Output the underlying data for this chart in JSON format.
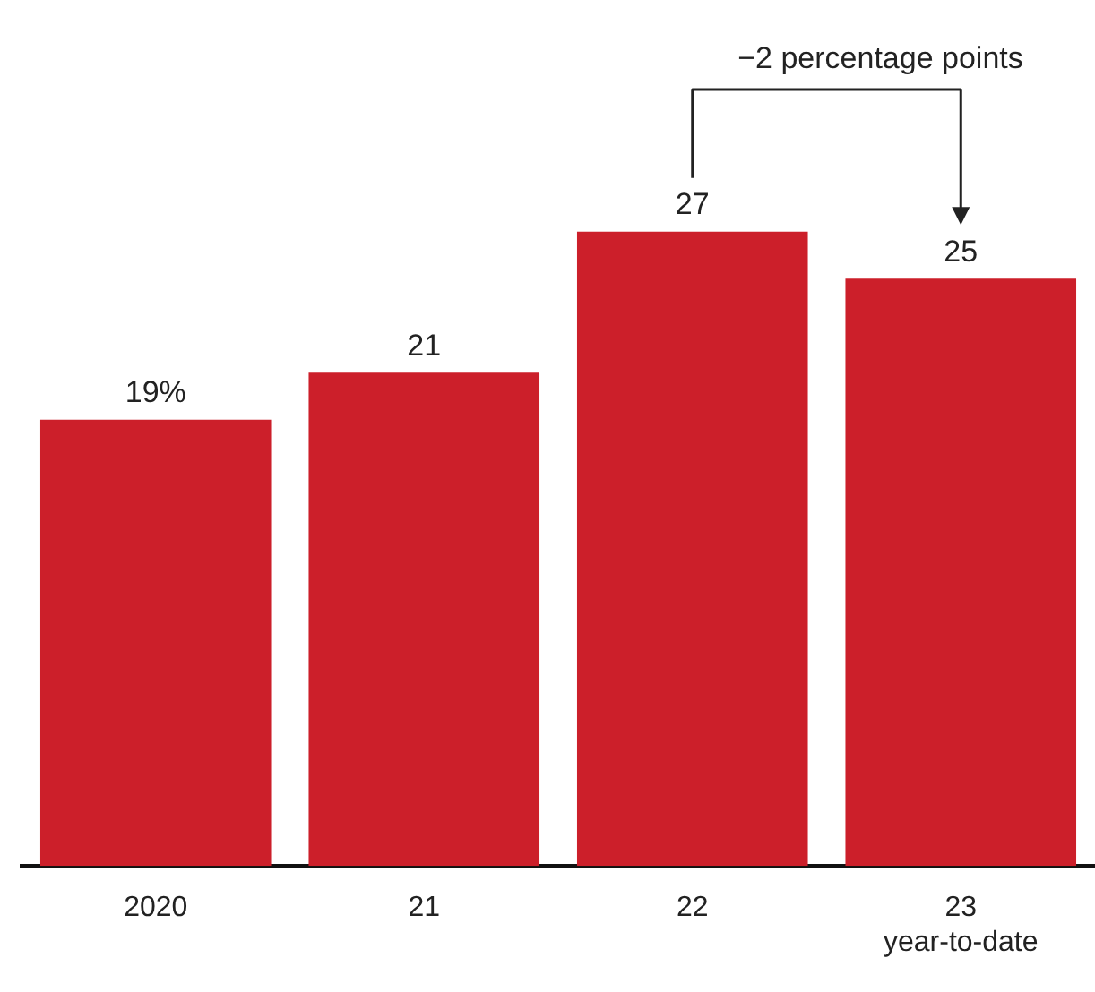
{
  "chart_data": {
    "type": "bar",
    "categories": [
      "2020",
      "21",
      "22",
      "23\nyear-to-date"
    ],
    "values": [
      19,
      21,
      27,
      25
    ],
    "value_labels": [
      "19%",
      "21",
      "27",
      "25"
    ],
    "color": "#cc1f2a",
    "annotations": [
      "−2 percentage points"
    ],
    "grid": false,
    "legend": false
  }
}
